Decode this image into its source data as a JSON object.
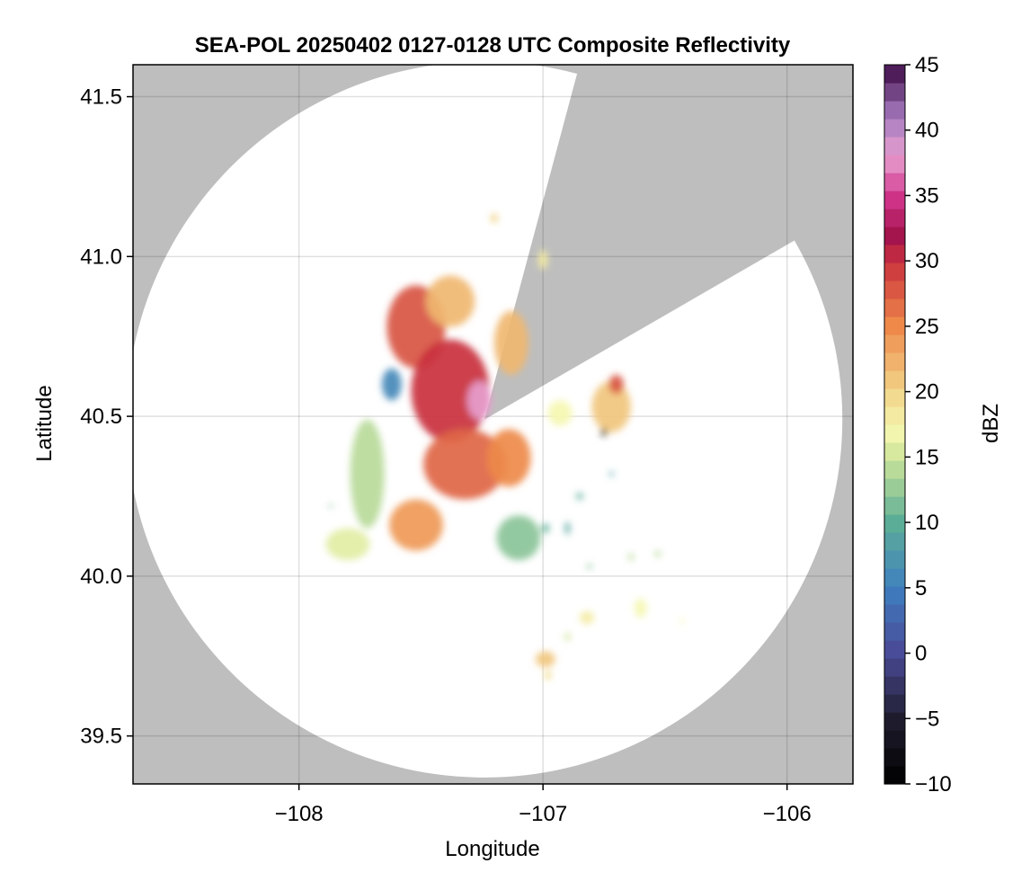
{
  "chart_data": {
    "type": "heatmap",
    "title": "SEA-POL 20250402 0127-0128 UTC Composite Reflectivity",
    "xlabel": "Longitude",
    "ylabel": "Latitude",
    "xlim": [
      -108.68,
      -105.73
    ],
    "ylim": [
      39.35,
      41.6
    ],
    "xticks": [
      -108,
      -107,
      -106
    ],
    "xtick_labels": [
      "−108",
      "−107",
      "−106"
    ],
    "yticks": [
      39.5,
      40.0,
      40.5,
      41.0,
      41.5
    ],
    "ytick_labels": [
      "39.5",
      "40.0",
      "40.5",
      "41.0",
      "41.5"
    ],
    "grid": true,
    "background_color": "#bebebe",
    "radar": {
      "center_lon": -107.24,
      "center_lat": 40.49,
      "range_deg_lat": 1.12,
      "blocked_sectors_deg_from_north": [
        [
          15,
          60
        ]
      ]
    },
    "colorbar": {
      "label": "dBZ",
      "min": -10,
      "max": 45,
      "step": 1.375,
      "ticks": [
        -10,
        -5,
        0,
        5,
        10,
        15,
        20,
        25,
        30,
        35,
        40,
        45
      ],
      "tick_labels": [
        "−10",
        "−5",
        "0",
        "5",
        "10",
        "15",
        "20",
        "25",
        "30",
        "35",
        "40",
        "45"
      ],
      "colormap_stops": [
        {
          "value": -10,
          "color": "#000000"
        },
        {
          "value": -5,
          "color": "#1f1d2e"
        },
        {
          "value": 0,
          "color": "#4a4a96"
        },
        {
          "value": 5,
          "color": "#3f7fc0"
        },
        {
          "value": 10,
          "color": "#5cae96"
        },
        {
          "value": 15,
          "color": "#cfe59a"
        },
        {
          "value": 17,
          "color": "#f5f7b0"
        },
        {
          "value": 20,
          "color": "#f2d58a"
        },
        {
          "value": 25,
          "color": "#ee8a4a"
        },
        {
          "value": 30,
          "color": "#c9303d"
        },
        {
          "value": 32,
          "color": "#a3134d"
        },
        {
          "value": 35,
          "color": "#d2368e"
        },
        {
          "value": 38,
          "color": "#e7a0cf"
        },
        {
          "value": 41,
          "color": "#a77bc0"
        },
        {
          "value": 45,
          "color": "#3b0a45"
        }
      ]
    },
    "echo_cells": [
      {
        "lon": -107.52,
        "lat": 40.78,
        "rlon": 0.12,
        "rlat": 0.13,
        "dbz": 28
      },
      {
        "lon": -107.38,
        "lat": 40.58,
        "rlon": 0.16,
        "rlat": 0.16,
        "dbz": 30
      },
      {
        "lon": -107.26,
        "lat": 40.55,
        "rlon": 0.05,
        "rlat": 0.06,
        "dbz": 38
      },
      {
        "lon": -107.32,
        "lat": 40.35,
        "rlon": 0.17,
        "rlat": 0.11,
        "dbz": 27
      },
      {
        "lon": -107.52,
        "lat": 40.16,
        "rlon": 0.11,
        "rlat": 0.08,
        "dbz": 24
      },
      {
        "lon": -107.14,
        "lat": 40.37,
        "rlon": 0.09,
        "rlat": 0.09,
        "dbz": 25
      },
      {
        "lon": -107.72,
        "lat": 40.32,
        "rlon": 0.07,
        "rlat": 0.17,
        "dbz": 14
      },
      {
        "lon": -107.38,
        "lat": 40.86,
        "rlon": 0.1,
        "rlat": 0.08,
        "dbz": 22
      },
      {
        "lon": -107.13,
        "lat": 40.73,
        "rlon": 0.07,
        "rlat": 0.1,
        "dbz": 22
      },
      {
        "lon": -107.1,
        "lat": 40.12,
        "rlon": 0.09,
        "rlat": 0.07,
        "dbz": 12
      },
      {
        "lon": -107.8,
        "lat": 40.1,
        "rlon": 0.09,
        "rlat": 0.05,
        "dbz": 16
      },
      {
        "lon": -107.62,
        "lat": 40.6,
        "rlon": 0.04,
        "rlat": 0.05,
        "dbz": 6
      },
      {
        "lon": -106.72,
        "lat": 40.53,
        "rlon": 0.08,
        "rlat": 0.08,
        "dbz": 21
      },
      {
        "lon": -106.7,
        "lat": 40.6,
        "rlon": 0.03,
        "rlat": 0.03,
        "dbz": 28
      },
      {
        "lon": -106.93,
        "lat": 40.51,
        "rlon": 0.05,
        "rlat": 0.04,
        "dbz": 17
      },
      {
        "lon": -107.2,
        "lat": 41.12,
        "rlon": 0.015,
        "rlat": 0.015,
        "dbz": 20
      },
      {
        "lon": -107.0,
        "lat": 40.99,
        "rlon": 0.02,
        "rlat": 0.03,
        "dbz": 18
      },
      {
        "lon": -106.99,
        "lat": 39.74,
        "rlon": 0.04,
        "rlat": 0.025,
        "dbz": 21
      },
      {
        "lon": -106.98,
        "lat": 39.69,
        "rlon": 0.015,
        "rlat": 0.015,
        "dbz": 19
      },
      {
        "lon": -106.9,
        "lat": 39.81,
        "rlon": 0.012,
        "rlat": 0.012,
        "dbz": 15
      },
      {
        "lon": -106.82,
        "lat": 39.87,
        "rlon": 0.03,
        "rlat": 0.02,
        "dbz": 18
      },
      {
        "lon": -106.6,
        "lat": 39.9,
        "rlon": 0.025,
        "rlat": 0.03,
        "dbz": 17
      },
      {
        "lon": -106.43,
        "lat": 39.86,
        "rlon": 0.008,
        "rlat": 0.008,
        "dbz": 17
      },
      {
        "lon": -106.64,
        "lat": 40.06,
        "rlon": 0.012,
        "rlat": 0.01,
        "dbz": 14
      },
      {
        "lon": -106.53,
        "lat": 40.07,
        "rlon": 0.012,
        "rlat": 0.01,
        "dbz": 14
      },
      {
        "lon": -106.81,
        "lat": 40.03,
        "rlon": 0.01,
        "rlat": 0.008,
        "dbz": 12
      },
      {
        "lon": -106.99,
        "lat": 40.15,
        "rlon": 0.015,
        "rlat": 0.015,
        "dbz": 10
      },
      {
        "lon": -106.9,
        "lat": 40.15,
        "rlon": 0.01,
        "rlat": 0.02,
        "dbz": 9
      },
      {
        "lon": -106.85,
        "lat": 40.25,
        "rlon": 0.015,
        "rlat": 0.01,
        "dbz": 10
      },
      {
        "lon": -106.72,
        "lat": 40.32,
        "rlon": 0.008,
        "rlat": 0.008,
        "dbz": 8
      },
      {
        "lon": -107.87,
        "lat": 40.22,
        "rlon": 0.008,
        "rlat": 0.006,
        "dbz": 12
      },
      {
        "lon": -106.75,
        "lat": 40.45,
        "rlon": 0.012,
        "rlat": 0.012,
        "dbz": -8
      }
    ]
  }
}
